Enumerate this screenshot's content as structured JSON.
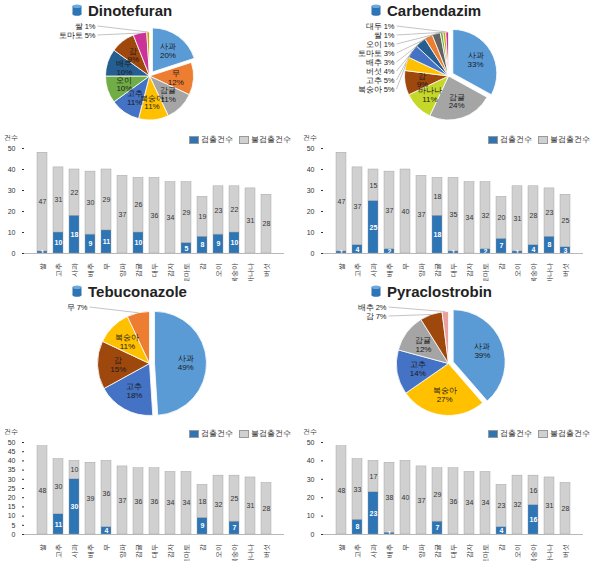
{
  "chart_data": [
    {
      "type": "pie",
      "title": "Dinotefuran",
      "categories": [
        "사과",
        "무",
        "감귤",
        "복숭아",
        "고추",
        "오이",
        "배추",
        "감",
        "토마토",
        "쌀"
      ],
      "values": [
        20,
        12,
        11,
        11,
        11,
        10,
        10,
        9,
        5,
        1
      ],
      "value_labels": [
        "20%",
        "12%",
        "11%",
        "11%",
        "11%",
        "10%",
        "10%",
        "9%",
        "5%",
        "1%"
      ],
      "colors": [
        "#5b9bd5",
        "#ed7d31",
        "#a5a5a5",
        "#ffc000",
        "#4472c4",
        "#70ad47",
        "#255e91",
        "#9e480e",
        "#cc3399",
        "#c9a400"
      ],
      "data_labels": true
    },
    {
      "type": "bar",
      "stacked": true,
      "y_label": "건수",
      "legend": "top-right",
      "data_labels": true,
      "categories": [
        "쌀",
        "고추",
        "사과",
        "배추",
        "무",
        "양파",
        "감귤",
        "대두",
        "감자",
        "토마토",
        "감",
        "오이",
        "복숭아",
        "바나나",
        "버섯"
      ],
      "series": [
        {
          "name": "검출건수",
          "color": "#2e75b6",
          "values": [
            1,
            10,
            18,
            9,
            11,
            0,
            10,
            0,
            0,
            5,
            8,
            9,
            10,
            0,
            0
          ]
        },
        {
          "name": "불검출건수",
          "color": "#d0d0d0",
          "values": [
            47,
            31,
            22,
            30,
            29,
            37,
            26,
            36,
            34,
            29,
            19,
            23,
            22,
            31,
            28
          ]
        }
      ],
      "ylim": [
        0,
        50
      ],
      "yticks": [
        0,
        10,
        20,
        30,
        40,
        50
      ]
    },
    {
      "type": "pie",
      "title": "Carbendazim",
      "categories": [
        "사과",
        "감귤",
        "바나나",
        "감",
        "복숭아",
        "고추",
        "버섯",
        "배추",
        "토마토",
        "오이",
        "쌀",
        "대두"
      ],
      "values": [
        33,
        24,
        11,
        9,
        5,
        5,
        4,
        3,
        3,
        1,
        1,
        1
      ],
      "value_labels": [
        "33%",
        "24%",
        "11%",
        "9%",
        "5%",
        "5%",
        "4%",
        "3%",
        "3%",
        "1%",
        "1%",
        "1%"
      ],
      "colors": [
        "#5b9bd5",
        "#a5a5a5",
        "#c5d82a",
        "#9e480e",
        "#ffc000",
        "#4472c4",
        "#255e91",
        "#ed7d31",
        "#636363",
        "#70ad47",
        "#c9a400",
        "#cc3399"
      ],
      "data_labels": true
    },
    {
      "type": "bar",
      "stacked": true,
      "y_label": "건수",
      "legend": "top-right",
      "data_labels": true,
      "categories": [
        "쌀",
        "고추",
        "사과",
        "배추",
        "무",
        "양파",
        "감귤",
        "대두",
        "감자",
        "토마토",
        "감",
        "오이",
        "복숭아",
        "바나나",
        "버섯"
      ],
      "series": [
        {
          "name": "검출건수",
          "color": "#2e75b6",
          "values": [
            1,
            4,
            25,
            2,
            0,
            0,
            18,
            1,
            0,
            2,
            7,
            1,
            4,
            8,
            3
          ]
        },
        {
          "name": "불검출건수",
          "color": "#d0d0d0",
          "values": [
            47,
            37,
            15,
            37,
            40,
            37,
            18,
            35,
            34,
            32,
            20,
            31,
            28,
            23,
            25
          ]
        }
      ],
      "ylim": [
        0,
        50
      ],
      "yticks": [
        0,
        10,
        20,
        30,
        40,
        50
      ]
    },
    {
      "type": "pie",
      "title": "Tebuconazole",
      "categories": [
        "사과",
        "고추",
        "감",
        "복숭아",
        "무"
      ],
      "values": [
        49,
        18,
        15,
        11,
        7
      ],
      "value_labels": [
        "49%",
        "18%",
        "15%",
        "11%",
        "7%"
      ],
      "colors": [
        "#5b9bd5",
        "#4472c4",
        "#9e480e",
        "#ffc000",
        "#ed7d31"
      ],
      "data_labels": true
    },
    {
      "type": "bar",
      "stacked": true,
      "y_label": "건수",
      "legend": "top-right",
      "data_labels": true,
      "categories": [
        "쌀",
        "고추",
        "사과",
        "배추",
        "무",
        "양파",
        "감귤",
        "대두",
        "감자",
        "토마토",
        "감",
        "오이",
        "복숭아",
        "바나나",
        "버섯"
      ],
      "series": [
        {
          "name": "검출건수",
          "color": "#2e75b6",
          "values": [
            0,
            11,
            30,
            0,
            4,
            0,
            0,
            0,
            0,
            0,
            9,
            0,
            7,
            0,
            0
          ]
        },
        {
          "name": "불검출건수",
          "color": "#d0d0d0",
          "values": [
            48,
            30,
            10,
            39,
            36,
            37,
            36,
            36,
            34,
            34,
            18,
            32,
            25,
            31,
            28
          ]
        }
      ],
      "ylim": [
        0,
        50
      ],
      "yticks": [
        0,
        5,
        10,
        15,
        20,
        25,
        30,
        35,
        40,
        45,
        50
      ]
    },
    {
      "type": "pie",
      "title": "Pyraclostrobin",
      "categories": [
        "사과",
        "복숭아",
        "고추",
        "감귤",
        "감",
        "배추"
      ],
      "values": [
        39,
        27,
        14,
        12,
        7,
        2
      ],
      "value_labels": [
        "39%",
        "27%",
        "14%",
        "12%",
        "7%",
        "2%"
      ],
      "colors": [
        "#5b9bd5",
        "#ffc000",
        "#4472c4",
        "#a5a5a5",
        "#9e480e",
        "#e8a0a0"
      ],
      "data_labels": true
    },
    {
      "type": "bar",
      "stacked": true,
      "y_label": "건수",
      "legend": "top-right",
      "data_labels": true,
      "categories": [
        "쌀",
        "고추",
        "사과",
        "배추",
        "무",
        "양파",
        "감귤",
        "대두",
        "감자",
        "토마토",
        "감",
        "오이",
        "복숭아",
        "바나나",
        "버섯"
      ],
      "series": [
        {
          "name": "검출건수",
          "color": "#2e75b6",
          "values": [
            0,
            8,
            23,
            1,
            0,
            0,
            7,
            0,
            0,
            0,
            4,
            0,
            16,
            0,
            0
          ]
        },
        {
          "name": "불검출건수",
          "color": "#d0d0d0",
          "values": [
            48,
            33,
            17,
            38,
            40,
            37,
            29,
            36,
            34,
            34,
            23,
            32,
            16,
            31,
            28
          ]
        }
      ],
      "ylim": [
        0,
        50
      ],
      "yticks": [
        0,
        10,
        20,
        30,
        40,
        50
      ]
    }
  ]
}
